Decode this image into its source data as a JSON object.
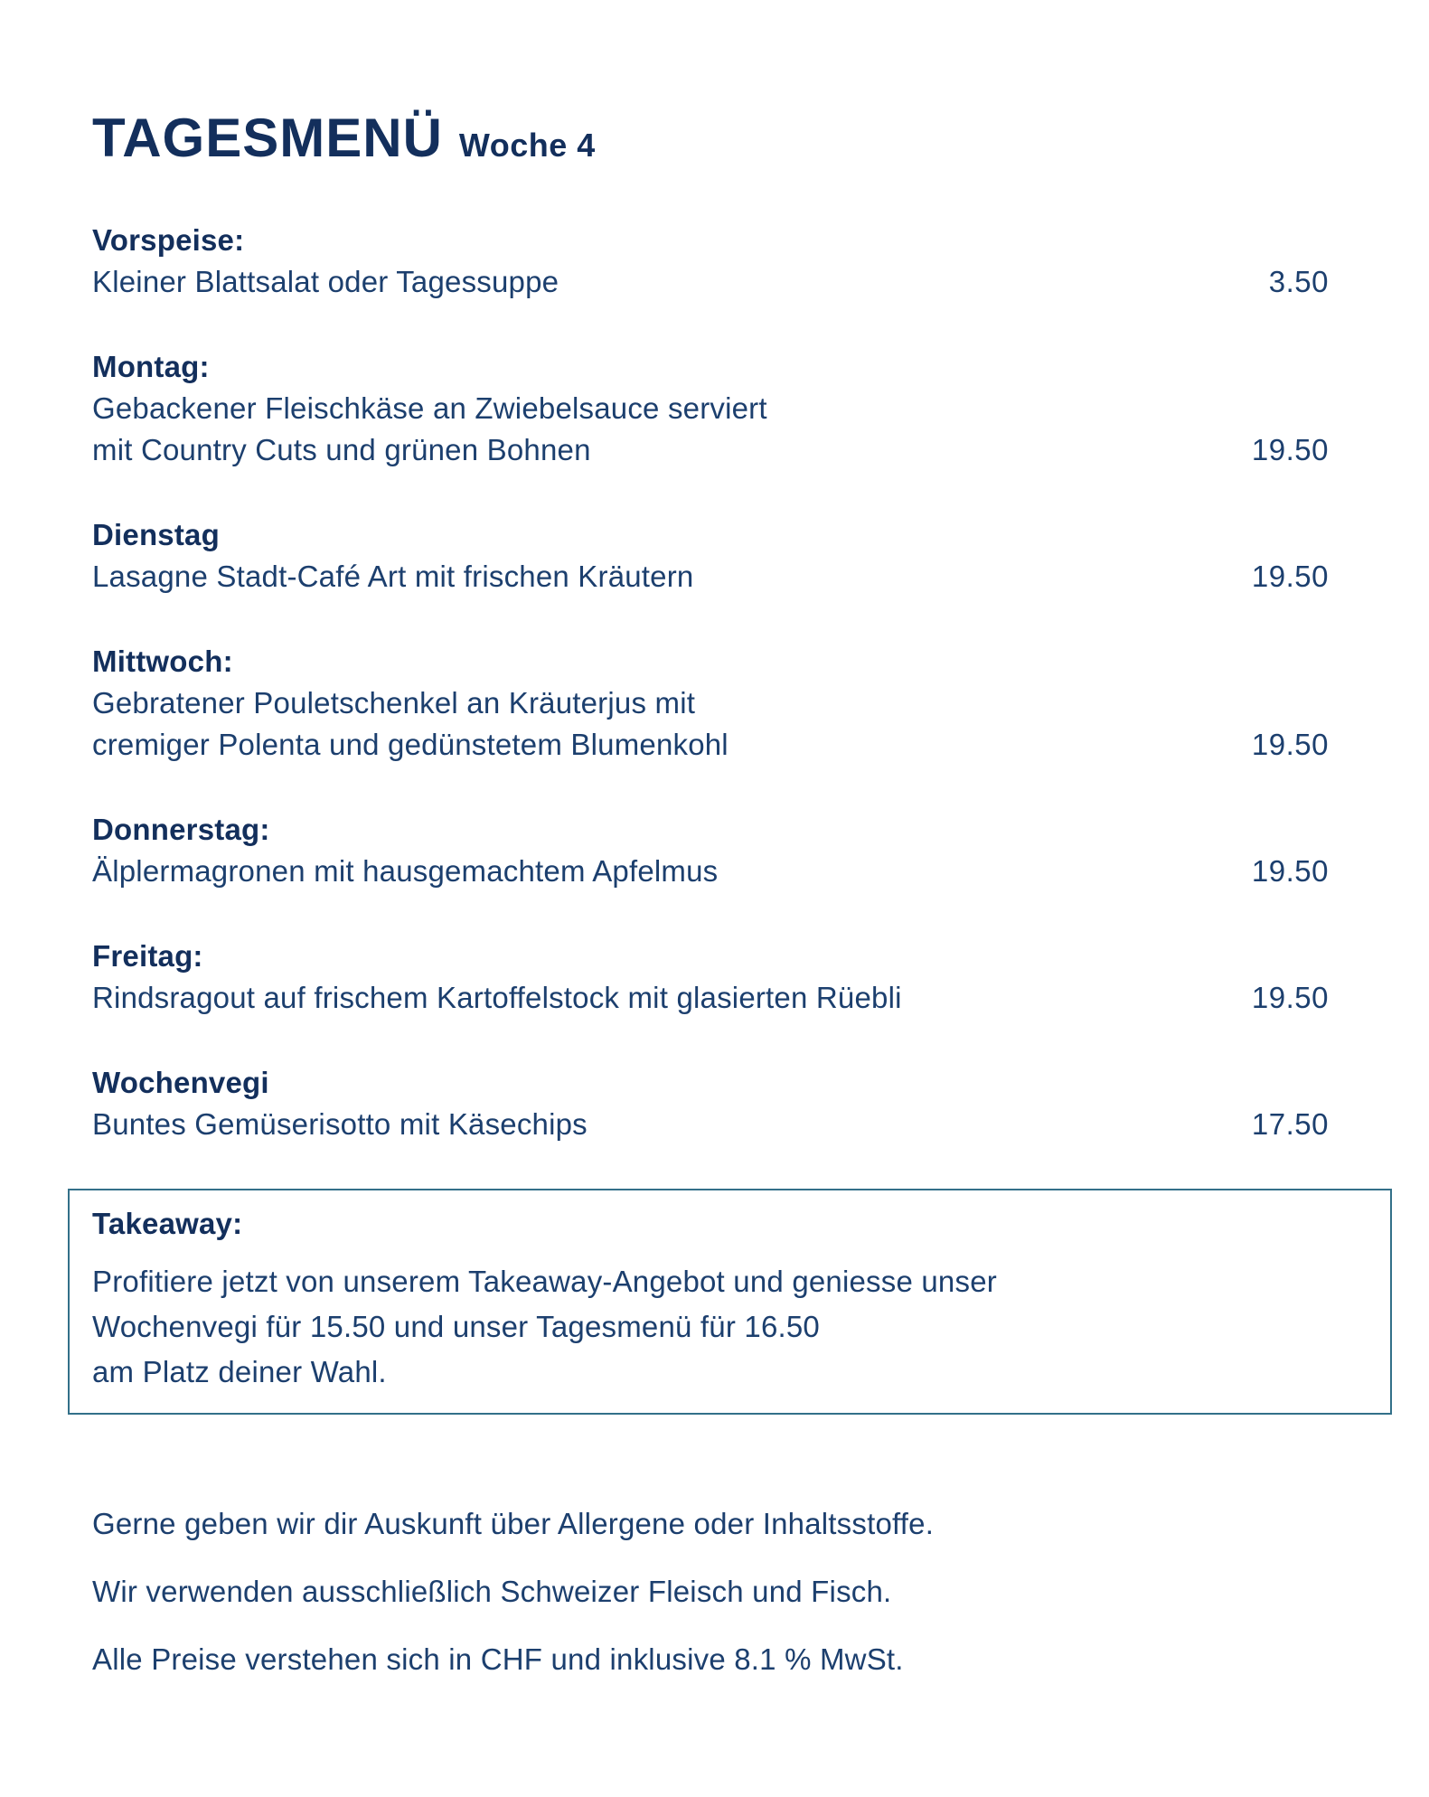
{
  "page": {
    "title": "TAGESMENÜ",
    "subtitle": "Woche 4"
  },
  "menu": {
    "sections": [
      {
        "heading": "Vorspeise:",
        "lines": [
          "Kleiner Blattsalat oder Tagessuppe"
        ],
        "price": "3.50"
      },
      {
        "heading": "Montag:",
        "lines": [
          "Gebackener Fleischkäse an Zwiebelsauce serviert",
          "mit Country Cuts und grünen Bohnen"
        ],
        "price": "19.50"
      },
      {
        "heading": "Dienstag",
        "lines": [
          "Lasagne Stadt-Café Art mit frischen Kräutern"
        ],
        "price": "19.50"
      },
      {
        "heading": "Mittwoch:",
        "lines": [
          "Gebratener Pouletschenkel an Kräuterjus mit",
          "cremiger Polenta und gedünstetem Blumenkohl"
        ],
        "price": "19.50"
      },
      {
        "heading": "Donnerstag:",
        "lines": [
          "Älplermagronen mit hausgemachtem Apfelmus"
        ],
        "price": "19.50"
      },
      {
        "heading": "Freitag:",
        "lines": [
          "Rindsragout auf frischem Kartoffelstock mit glasierten Rüebli"
        ],
        "price": "19.50"
      },
      {
        "heading": "Wochenvegi",
        "lines": [
          "Buntes Gemüserisotto mit Käsechips"
        ],
        "price": "17.50"
      }
    ]
  },
  "takeaway": {
    "heading": "Takeaway:",
    "lines": [
      "Profitiere jetzt von unserem Takeaway-Angebot und geniesse unser",
      "Wochenvegi für 15.50 und unser Tagesmenü für 16.50",
      "am Platz deiner Wahl."
    ]
  },
  "footer": {
    "notes": [
      "Gerne geben wir dir Auskunft über Allergene oder Inhaltsstoffe.",
      "Wir verwenden ausschließlich Schweizer Fleisch und Fisch.",
      "Alle Preise verstehen sich in CHF und inklusive 8.1 % MwSt."
    ]
  },
  "colors": {
    "heading_text": "#132f5c",
    "body_text": "#1c3f6e",
    "takeaway_border": "#337089",
    "background": "#ffffff"
  }
}
